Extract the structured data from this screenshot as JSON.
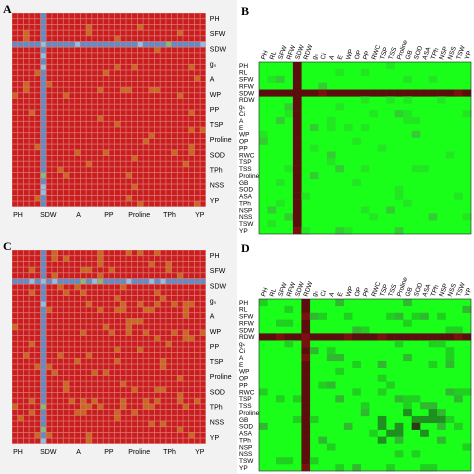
{
  "chart_data": [
    {
      "panel": "A",
      "type": "heatmap",
      "n": 34,
      "highlight_cells": [
        5
      ],
      "blue_row": 5,
      "blue_col": 5,
      "right_labels": [
        "PH",
        "SFW",
        "SDW",
        "gₛ",
        "A",
        "WP",
        "PP",
        "TSP",
        "Proline",
        "SOD",
        "TPh",
        "NSS",
        "YP"
      ],
      "bottom_labels": [
        "PH",
        "SDW",
        "A",
        "PP",
        "Proline",
        "TPh",
        "YP"
      ],
      "grid": true,
      "colors": {
        "cell": "#c81e1e",
        "cross": "#5b8fc9",
        "light": "#86c3e6",
        "green": "#7bbf7b",
        "orange": "#c66a1c",
        "gridline": "#e07070"
      }
    },
    {
      "panel": "B",
      "type": "heatmap",
      "labels": [
        "PH",
        "RL",
        "SFW",
        "RFW",
        "SDW",
        "RDW",
        "gₛ",
        "Ci",
        "A",
        "E",
        "WP",
        "OP",
        "PP",
        "RWC",
        "TSP",
        "TSS",
        "Proline",
        "GB",
        "SOD",
        "ASA",
        "TPh",
        "NSP",
        "NSS",
        "TSW",
        "YP"
      ],
      "cross_index": 4,
      "colors": {
        "base": "#1aff1a",
        "cross": "#5c0e0e",
        "dark": "#2e3a10"
      }
    },
    {
      "panel": "C",
      "type": "heatmap",
      "n": 34,
      "blue_row": 5,
      "blue_col": 5,
      "right_labels": [
        "PH",
        "SFW",
        "SDW",
        "gₛ",
        "A",
        "WP",
        "PP",
        "TSP",
        "Proline",
        "SOD",
        "TPh",
        "NSS",
        "YP"
      ],
      "bottom_labels": [
        "PH",
        "SDW",
        "A",
        "PP",
        "Proline",
        "TPh",
        "YP"
      ],
      "grid": true,
      "colors": {
        "cell": "#c81e1e",
        "cross": "#5b8fc9",
        "light": "#86c3e6",
        "green": "#7bbf7b",
        "orange": "#c66a1c",
        "gridline": "#e07070"
      }
    },
    {
      "panel": "D",
      "type": "heatmap",
      "labels": [
        "PH",
        "RL",
        "SFW",
        "RFW",
        "SDW",
        "RDW",
        "gₛ",
        "Ci",
        "A",
        "E",
        "WP",
        "OP",
        "PP",
        "RWC",
        "TSP",
        "TSS",
        "Proline",
        "GB",
        "SOD",
        "ASA",
        "TPh",
        "NSP",
        "NSS",
        "TSW",
        "YP"
      ],
      "cross_index": 5,
      "colors": {
        "base": "#1aff1a",
        "cross": "#5c0e0e",
        "dark": "#2e3a10"
      }
    }
  ],
  "panel_letters": {
    "a": "A",
    "b": "B",
    "c": "C",
    "d": "D"
  }
}
